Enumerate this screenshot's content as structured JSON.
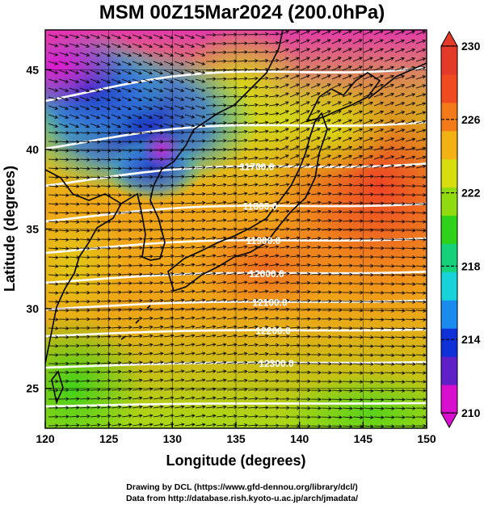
{
  "title": "MSM 00Z15Mar2024 (200.0hPa)",
  "xlabel": "Longitude (degrees)",
  "ylabel": "Latitude  (degrees)",
  "footer": {
    "line1": "Drawing by DCL (https://www.gfd-dennou.org/library/dcl/)",
    "line2": "Data from http://database.rish.kyoto-u.ac.jp/arch/jmadata/"
  },
  "map": {
    "lon_range": [
      120,
      150
    ],
    "lat_range": [
      22.5,
      47.5
    ],
    "lon_ticks": [
      "120",
      "125",
      "130",
      "135",
      "140",
      "145",
      "150"
    ],
    "lat_ticks": [
      "25",
      "30",
      "35",
      "40",
      "45"
    ],
    "contour_labels": [
      "11700.0",
      "11800.0",
      "11900.0",
      "12000.0",
      "12100.0",
      "12200.0",
      "12300.0"
    ]
  },
  "colorbar": {
    "range": [
      210,
      230
    ],
    "tick_labels": [
      "230",
      "226",
      "222",
      "218",
      "214",
      "210"
    ],
    "colors": [
      "#d90fd0",
      "#6020c8",
      "#1030d8",
      "#1a8cf0",
      "#17d2d8",
      "#15d27a",
      "#2ed21a",
      "#8fdb10",
      "#d8dd10",
      "#f2b214",
      "#f27a19",
      "#f04a20",
      "#e33a2a"
    ]
  }
}
